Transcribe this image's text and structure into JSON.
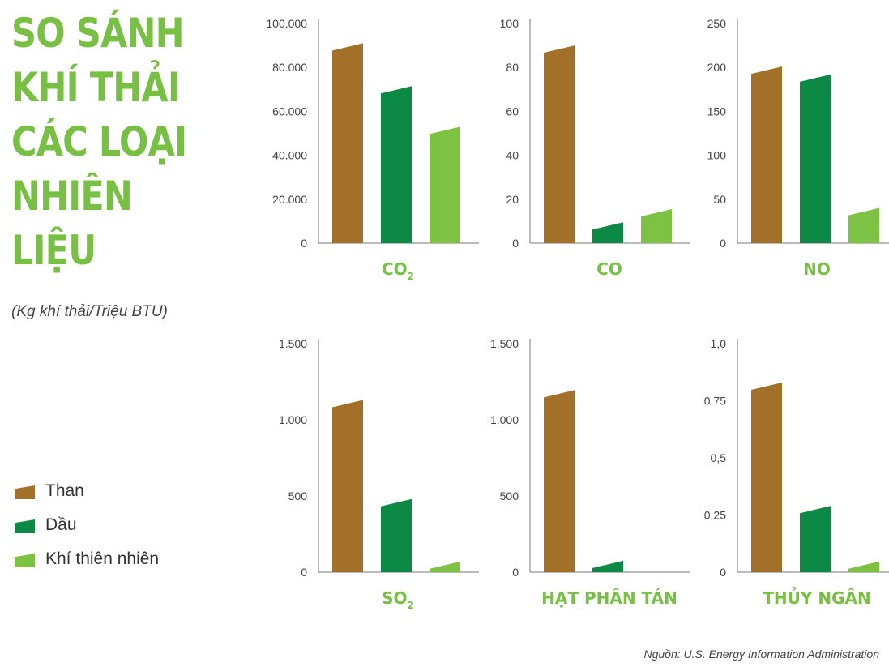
{
  "title_lines": [
    "SO SÁNH",
    "KHÍ THẢI",
    "CÁC LOẠI",
    "NHIÊN",
    "LIỆU"
  ],
  "subtitle": "(Kg khí thải/Triệu BTU)",
  "source": "Nguồn: U.S. Energy Information Administration",
  "legend": [
    {
      "label": "Than",
      "color": "#a3702a"
    },
    {
      "label": "Dầu",
      "color": "#0c8a45"
    },
    {
      "label": "Khí thiên nhiên",
      "color": "#7dc243"
    }
  ],
  "chart_data": [
    {
      "type": "bar",
      "title": "CO",
      "title_subscript": "2",
      "categories": [
        "Than",
        "Dầu",
        "Khí thiên nhiên"
      ],
      "values": [
        91000,
        71500,
        53000
      ],
      "ylim": [
        0,
        100000
      ],
      "yticks": [
        0,
        20000,
        40000,
        60000,
        80000,
        100000
      ],
      "ytick_labels": [
        "0",
        "20.000",
        "40.000",
        "60.000",
        "80.000",
        "100.000"
      ]
    },
    {
      "type": "bar",
      "title": "CO",
      "title_subscript": "",
      "categories": [
        "Than",
        "Dầu",
        "Khí thiên nhiên"
      ],
      "values": [
        90,
        9.5,
        15.5
      ],
      "ylim": [
        0,
        100
      ],
      "yticks": [
        0,
        20,
        40,
        60,
        80,
        100
      ],
      "ytick_labels": [
        "0",
        "20",
        "40",
        "60",
        "80",
        "100"
      ]
    },
    {
      "type": "bar",
      "title": "NO",
      "title_subscript": "",
      "categories": [
        "Than",
        "Dầu",
        "Khí thiên nhiên"
      ],
      "values": [
        201,
        192,
        40
      ],
      "ylim": [
        0,
        250
      ],
      "yticks": [
        0,
        50,
        100,
        150,
        200,
        250
      ],
      "ytick_labels": [
        "0",
        "50",
        "100",
        "150",
        "200",
        "250"
      ]
    },
    {
      "type": "bar",
      "title": "SO",
      "title_subscript": "2",
      "categories": [
        "Than",
        "Dầu",
        "Khí thiên nhiên"
      ],
      "values": [
        1130,
        480,
        70
      ],
      "ylim": [
        0,
        1500
      ],
      "yticks": [
        0,
        500,
        1000,
        1500
      ],
      "ytick_labels": [
        "0",
        "500",
        "1.000",
        "1.500"
      ]
    },
    {
      "type": "bar",
      "title": "HẠT PHÂN TÁN",
      "title_subscript": "",
      "categories": [
        "Than",
        "Dầu",
        "Khí thiên nhiên"
      ],
      "values": [
        1195,
        75,
        0
      ],
      "ylim": [
        0,
        1500
      ],
      "yticks": [
        0,
        500,
        1000,
        1500
      ],
      "ytick_labels": [
        "0",
        "500",
        "1.000",
        "1.500"
      ]
    },
    {
      "type": "bar",
      "title": "THỦY NGÂN",
      "title_subscript": "",
      "categories": [
        "Than",
        "Dầu",
        "Khí thiên nhiên"
      ],
      "values": [
        0.83,
        0.29,
        0.047
      ],
      "ylim": [
        0,
        1.0
      ],
      "yticks": [
        0,
        0.25,
        0.5,
        0.75,
        1.0
      ],
      "ytick_labels": [
        "0",
        "0,25",
        "0,5",
        "0,75",
        "1,0"
      ]
    }
  ]
}
